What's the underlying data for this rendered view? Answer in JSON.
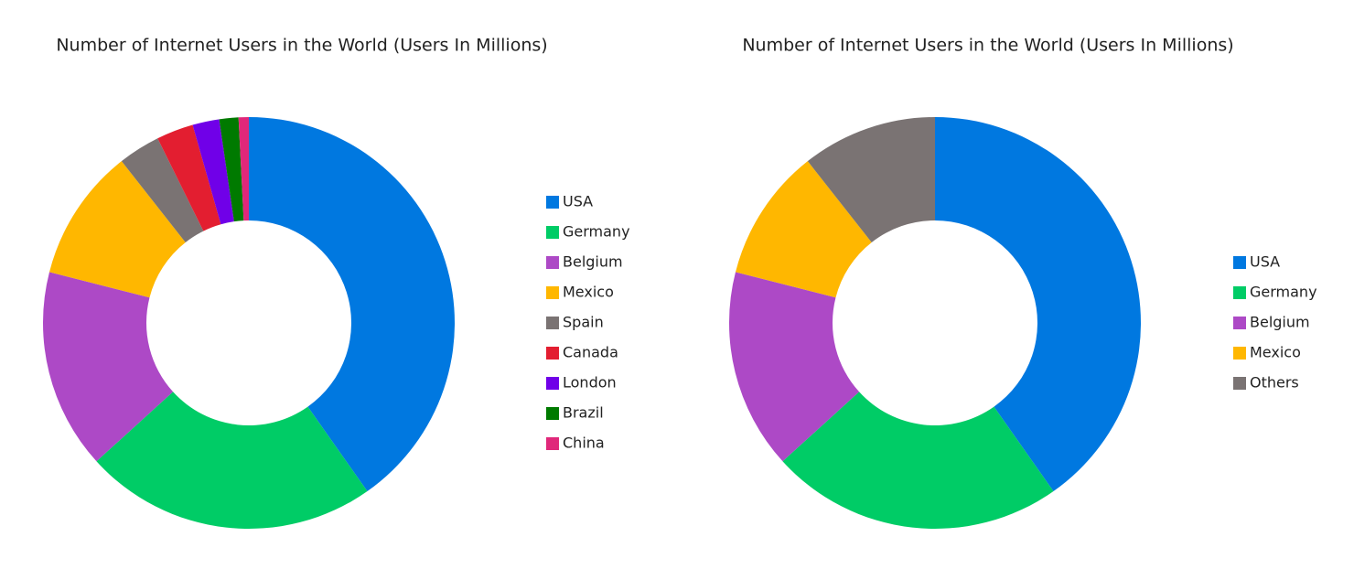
{
  "chart_data": [
    {
      "type": "doughnut",
      "title": "Number of Internet Users in the World (Users In Millions)",
      "categories": [
        "USA",
        "Germany",
        "Belgium",
        "Mexico",
        "Spain",
        "Canada",
        "London",
        "Brazil",
        "China"
      ],
      "values": [
        40.2,
        23,
        15.7,
        10.4,
        3.3,
        2.9,
        2.1,
        1.5,
        0.8
      ],
      "colors": [
        "#0078e0",
        "#00cc66",
        "#ad49c6",
        "#ffb700",
        "#7a7373",
        "#e31e30",
        "#7000e8",
        "#007a00",
        "#e0287a"
      ],
      "legend": "right"
    },
    {
      "type": "doughnut",
      "title": "Number of Internet Users in the World (Users In Millions)",
      "categories": [
        "USA",
        "Germany",
        "Belgium",
        "Mexico",
        "Others"
      ],
      "values": [
        40.2,
        23,
        15.7,
        10.4,
        10.6
      ],
      "colors": [
        "#0078e0",
        "#00cc66",
        "#ad49c6",
        "#ffb700",
        "#7a7373"
      ],
      "legend": "right"
    }
  ]
}
